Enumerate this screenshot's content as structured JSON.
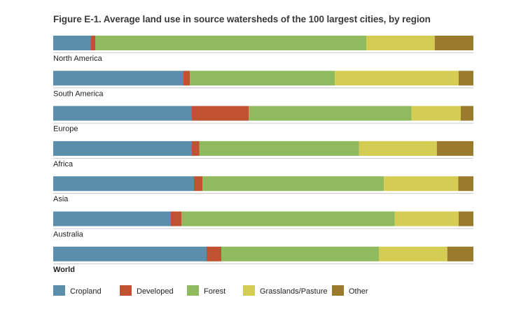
{
  "chart_data": {
    "type": "bar",
    "orientation": "horizontal",
    "stacked": true,
    "normalized": true,
    "title": "Figure E-1. Average land use in source watersheds of the 100 largest cities, by region",
    "categories": [
      "North America",
      "South America",
      "Europe",
      "Africa",
      "Asia",
      "Australia",
      "World"
    ],
    "series": [
      {
        "name": "Cropland",
        "color": "#5b8eab",
        "values": [
          9,
          31,
          33,
          33,
          33.5,
          28,
          36.5
        ]
      },
      {
        "name": "Developed",
        "color": "#c05231",
        "values": [
          1,
          1.5,
          13.5,
          1.8,
          2,
          2.5,
          3.5
        ]
      },
      {
        "name": "Forest",
        "color": "#8fba5d",
        "values": [
          64.5,
          34.5,
          38.8,
          38,
          43.2,
          50.8,
          37.5
        ]
      },
      {
        "name": "Grasslands/Pasture",
        "color": "#d4cc53",
        "values": [
          16.3,
          29.5,
          11.7,
          18.5,
          17.7,
          15.2,
          16.3
        ]
      },
      {
        "name": "Other",
        "color": "#9a7b2d",
        "values": [
          9.2,
          3.5,
          3,
          8.7,
          3.6,
          3.5,
          6.2
        ]
      }
    ],
    "xlim": [
      0,
      100
    ],
    "grid": false,
    "legend_position": "bottom"
  }
}
